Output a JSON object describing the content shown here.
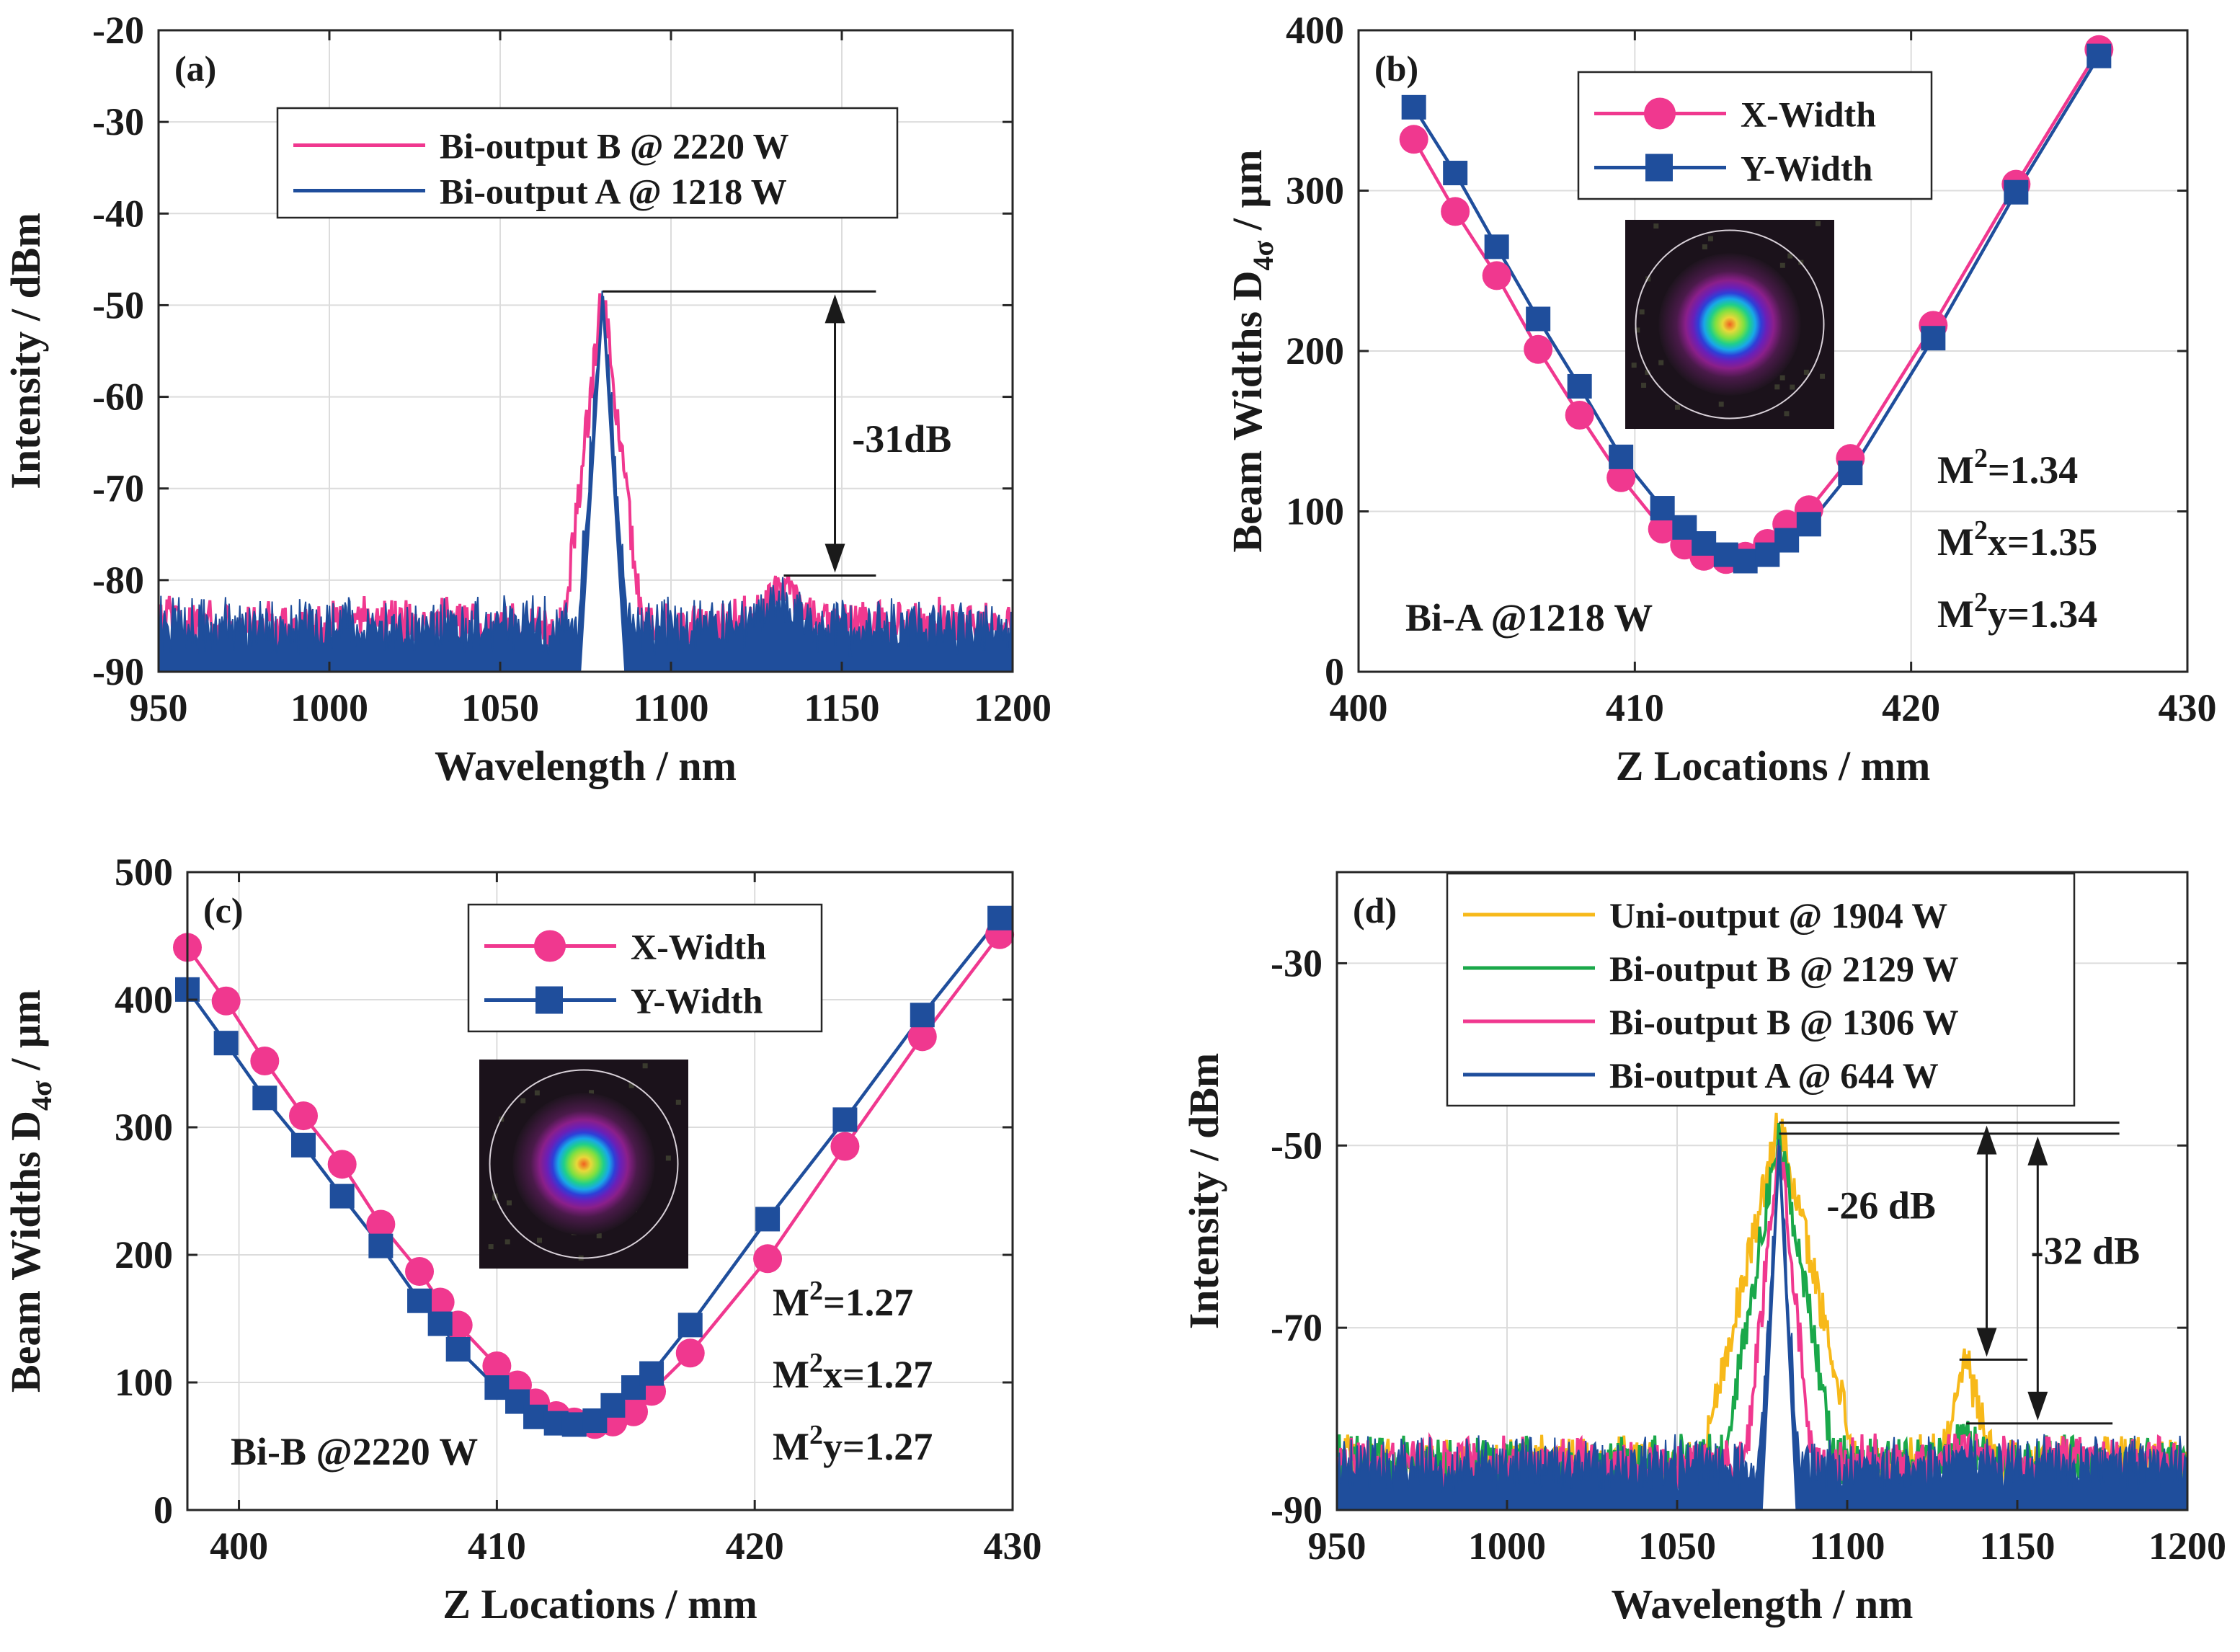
{
  "colors": {
    "pink": "#f0388f",
    "blue": "#1f4e9c",
    "yellow": "#f7b91a",
    "green": "#1aa84a",
    "axis": "#262626",
    "grid": "#dcdcdc"
  },
  "chart_data": [
    {
      "id": "a",
      "type": "line",
      "panel_label": "(a)",
      "xlabel": "Wavelength / nm",
      "ylabel": "Intensity / dBm",
      "xlim": [
        950,
        1200
      ],
      "ylim": [
        -90,
        -20
      ],
      "xticks": [
        "950",
        "1000",
        "1050",
        "1100",
        "1150",
        "1200"
      ],
      "yticks": [
        "-90",
        "-80",
        "-70",
        "-60",
        "-50",
        "-40",
        "-30",
        "-20"
      ],
      "series": [
        {
          "name": "Bi-output B @ 2220 W",
          "color": "#f0388f",
          "peak_x": 1080,
          "peak_y": -48.5,
          "floor": -84,
          "peak_halfwidth_nm": 7,
          "side_x": 1133,
          "side_y": -80
        },
        {
          "name": "Bi-output A @ 1218 W",
          "color": "#1f4e9c",
          "peak_x": 1080,
          "peak_y": -49,
          "floor": -84,
          "peak_halfwidth_nm": 4.5,
          "side_x": 1133,
          "side_y": -81
        }
      ],
      "annotation": {
        "text": "-31dB",
        "from_y": -48.5,
        "to_y": -79.5
      }
    },
    {
      "id": "b",
      "type": "line",
      "panel_label": "(b)",
      "xlabel": "Z Locations / mm",
      "ylabel": "Beam Widths D",
      "ylabel_sub": "4σ",
      "ylabel_unit": " / μm",
      "xlim": [
        400,
        430
      ],
      "ylim": [
        0,
        400
      ],
      "xticks": [
        "400",
        "410",
        "420",
        "430"
      ],
      "yticks": [
        "0",
        "100",
        "200",
        "300",
        "400"
      ],
      "series": [
        {
          "name": "X-Width",
          "color": "#f0388f",
          "marker": "circle",
          "x": [
            402.0,
            403.5,
            405.0,
            406.5,
            408.0,
            409.5,
            411.0,
            411.8,
            412.5,
            413.3,
            414.0,
            414.8,
            415.5,
            416.3,
            417.8,
            420.8,
            423.8,
            426.8
          ],
          "y": [
            332,
            287,
            247,
            201,
            160,
            121,
            89,
            79,
            72,
            70,
            72,
            80,
            92,
            101,
            133,
            216,
            304,
            388
          ]
        },
        {
          "name": "Y-Width",
          "color": "#1f4e9c",
          "marker": "square",
          "x": [
            402.0,
            403.5,
            405.0,
            406.5,
            408.0,
            409.5,
            411.0,
            411.8,
            412.5,
            413.3,
            414.0,
            414.8,
            415.5,
            416.3,
            417.8,
            420.8,
            423.8,
            426.8
          ],
          "y": [
            352,
            311,
            265,
            220,
            178,
            134,
            102,
            90,
            80,
            73,
            69,
            73,
            82,
            92,
            124,
            208,
            299,
            384
          ]
        }
      ],
      "texts": {
        "m2": "1.34",
        "m2x": "1.35",
        "m2y": "1.34",
        "condition": "Bi-A @1218 W"
      }
    },
    {
      "id": "c",
      "type": "line",
      "panel_label": "(c)",
      "xlabel": "Z Locations / mm",
      "ylabel": "Beam Widths D",
      "ylabel_sub": "4σ",
      "ylabel_unit": " / μm",
      "xlim": [
        398,
        430
      ],
      "ylim": [
        0,
        500
      ],
      "xticks": [
        "400",
        "410",
        "420",
        "430"
      ],
      "yticks": [
        "0",
        "100",
        "200",
        "300",
        "400",
        "500"
      ],
      "series": [
        {
          "name": "X-Width",
          "color": "#f0388f",
          "marker": "circle",
          "x": [
            398.0,
            399.5,
            401.0,
            402.5,
            404.0,
            405.5,
            407.0,
            407.8,
            408.5,
            410.0,
            410.8,
            411.5,
            412.3,
            413.0,
            413.8,
            414.5,
            415.3,
            416.0,
            417.5,
            420.5,
            423.5,
            426.5,
            429.5
          ],
          "y": [
            441,
            399,
            352,
            309,
            271,
            224,
            187,
            163,
            145,
            113,
            98,
            84,
            74,
            69,
            67,
            69,
            77,
            93,
            123,
            197,
            285,
            371,
            451
          ]
        },
        {
          "name": "Y-Width",
          "color": "#1f4e9c",
          "marker": "square",
          "x": [
            398.0,
            399.5,
            401.0,
            402.5,
            404.0,
            405.5,
            407.0,
            407.8,
            408.5,
            410.0,
            410.8,
            411.5,
            412.3,
            413.0,
            413.8,
            414.5,
            415.3,
            416.0,
            417.5,
            420.5,
            423.5,
            426.5,
            429.5
          ],
          "y": [
            408,
            366,
            323,
            286,
            246,
            207,
            164,
            146,
            126,
            96,
            85,
            73,
            68,
            67,
            70,
            82,
            96,
            107,
            145,
            228,
            306,
            388,
            464
          ]
        }
      ],
      "texts": {
        "m2": "1.27",
        "m2x": "1.27",
        "m2y": "1.27",
        "condition": "Bi-B @2220 W"
      }
    },
    {
      "id": "d",
      "type": "line",
      "panel_label": "(d)",
      "xlabel": "Wavelength / nm",
      "ylabel": "Intensity / dBm",
      "xlim": [
        950,
        1200
      ],
      "ylim": [
        -90,
        -20
      ],
      "xticks": [
        "950",
        "1000",
        "1050",
        "1100",
        "1150",
        "1200"
      ],
      "yticks": [
        "-90",
        "-70",
        "-50",
        "-30"
      ],
      "series": [
        {
          "name": "Uni-output @ 1904 W",
          "color": "#f7b91a",
          "peak_x": 1080,
          "peak_y": -47.5,
          "floor": -84,
          "peak_halfwidth_nm": 14,
          "side_x": 1135,
          "side_y": -73
        },
        {
          "name": "Bi-output B @ 2129 W",
          "color": "#1aa84a",
          "peak_x": 1080,
          "peak_y": -48.5,
          "floor": -84,
          "peak_halfwidth_nm": 10,
          "side_x": 1135,
          "side_y": -82
        },
        {
          "name": "Bi-output B @ 1306 W",
          "color": "#f0388f",
          "peak_x": 1080,
          "peak_y": -49,
          "floor": -84,
          "peak_halfwidth_nm": 6,
          "side_x": 1135,
          "side_y": -83
        },
        {
          "name": "Bi-output A @ 644 W",
          "color": "#1f4e9c",
          "peak_x": 1080,
          "peak_y": -50,
          "floor": -84,
          "peak_halfwidth_nm": 3.5,
          "side_x": 1135,
          "side_y": -84
        }
      ],
      "annotations": [
        {
          "text": "-26 dB",
          "from_y": -47.5,
          "to_y": -73.5
        },
        {
          "text": "-32 dB",
          "from_y": -48.7,
          "to_y": -80.5
        }
      ]
    }
  ]
}
